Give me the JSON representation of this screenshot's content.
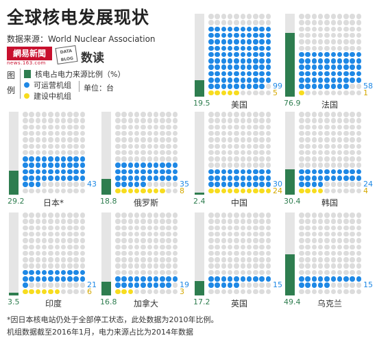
{
  "title": "全球核电发展现状",
  "source": "数据来源：World Nuclear Association",
  "logo": {
    "main": "網易新聞",
    "sub": "news.163.com",
    "blog_line1": "DATA",
    "blog_line2": "BLOG",
    "shudu": "数读"
  },
  "legend": {
    "title": "图例",
    "share_label": "核电占电力来源比例（%）",
    "operable_label": "可运营机组",
    "under_construction_label": "建设中机组",
    "unit_label": "单位：台"
  },
  "colors": {
    "share_bar": "#2e7d4f",
    "bar_background": "#e5e5e5",
    "operable": "#1e88e5",
    "under_construction": "#f7dc1e",
    "empty_dot": "#dcdcdc"
  },
  "footnote": {
    "line1": "*因日本核电站仍处于全部停工状态，此处数据为2010年比例。",
    "line2": "机组数据截至2016年1月，电力来源占比为2014年数据"
  },
  "chart_data": {
    "type": "bar",
    "title": "全球核电发展现状",
    "unit": "台",
    "categories": [
      "美国",
      "法国",
      "日本*",
      "俄罗斯",
      "中国",
      "韩国",
      "印度",
      "加拿大",
      "英国",
      "乌克兰"
    ],
    "series": [
      {
        "name": "核电占电力来源比例（%）",
        "values": [
          19.5,
          76.9,
          29.2,
          18.8,
          2.4,
          30.4,
          3.5,
          16.8,
          17.2,
          49.4
        ]
      },
      {
        "name": "可运营机组",
        "values": [
          99,
          58,
          43,
          35,
          30,
          24,
          21,
          19,
          15,
          15
        ]
      },
      {
        "name": "建设中机组",
        "values": [
          5,
          1,
          0,
          8,
          24,
          4,
          6,
          3,
          0,
          0
        ]
      }
    ],
    "ylim": [
      0,
      100
    ]
  },
  "countries": [
    {
      "name": "美国",
      "share": "19.5",
      "share_value": 19.5,
      "operable": 99,
      "operable_label": "99",
      "under_construction": 5,
      "under_construction_label": "5"
    },
    {
      "name": "法国",
      "share": "76.9",
      "share_value": 76.9,
      "operable": 58,
      "operable_label": "58",
      "under_construction": 1,
      "under_construction_label": "1"
    },
    {
      "name": "日本*",
      "share": "29.2",
      "share_value": 29.2,
      "operable": 43,
      "operable_label": "43",
      "under_construction": 0,
      "under_construction_label": ""
    },
    {
      "name": "俄罗斯",
      "share": "18.8",
      "share_value": 18.8,
      "operable": 35,
      "operable_label": "35",
      "under_construction": 8,
      "under_construction_label": "8"
    },
    {
      "name": "中国",
      "share": "2.4",
      "share_value": 2.4,
      "operable": 30,
      "operable_label": "30",
      "under_construction": 24,
      "under_construction_label": "24"
    },
    {
      "name": "韩国",
      "share": "30.4",
      "share_value": 30.4,
      "operable": 24,
      "operable_label": "24",
      "under_construction": 4,
      "under_construction_label": "4"
    },
    {
      "name": "印度",
      "share": "3.5",
      "share_value": 3.5,
      "operable": 21,
      "operable_label": "21",
      "under_construction": 6,
      "under_construction_label": "6"
    },
    {
      "name": "加拿大",
      "share": "16.8",
      "share_value": 16.8,
      "operable": 19,
      "operable_label": "19",
      "under_construction": 3,
      "under_construction_label": "3"
    },
    {
      "name": "英国",
      "share": "17.2",
      "share_value": 17.2,
      "operable": 15,
      "operable_label": "15",
      "under_construction": 0,
      "under_construction_label": ""
    },
    {
      "name": "乌克兰",
      "share": "49.4",
      "share_value": 49.4,
      "operable": 15,
      "operable_label": "15",
      "under_construction": 0,
      "under_construction_label": ""
    }
  ]
}
